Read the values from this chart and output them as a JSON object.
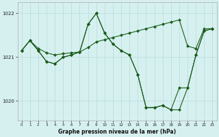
{
  "bg_color": "#d6f0f0",
  "line_color": "#1a5c1a",
  "grid_color": "#b8dada",
  "title": "Graphe pression niveau de la mer (hPa)",
  "xlim": [
    -0.5,
    23.5
  ],
  "ylim": [
    1019.55,
    1022.25
  ],
  "yticks": [
    1020,
    1021,
    1022
  ],
  "xticks": [
    0,
    1,
    2,
    3,
    4,
    5,
    6,
    7,
    8,
    9,
    10,
    11,
    12,
    13,
    14,
    15,
    16,
    17,
    18,
    19,
    20,
    21,
    22,
    23
  ],
  "line1_x": [
    0,
    1,
    2,
    3,
    4,
    5,
    6,
    7,
    8,
    9,
    10,
    11,
    12,
    13,
    14,
    15,
    16,
    17,
    18,
    19,
    20,
    21,
    22,
    23
  ],
  "line1_y": [
    1021.15,
    1021.38,
    1021.2,
    1021.1,
    1021.05,
    1021.08,
    1021.1,
    1021.12,
    1021.22,
    1021.35,
    1021.4,
    1021.45,
    1021.5,
    1021.55,
    1021.6,
    1021.65,
    1021.7,
    1021.75,
    1021.8,
    1021.85,
    1021.25,
    1021.2,
    1021.65,
    1021.65
  ],
  "line2_x": [
    0,
    1,
    2,
    3,
    4,
    5,
    6,
    7,
    8,
    9,
    10,
    11,
    12,
    13,
    14,
    15,
    16,
    17,
    18,
    19,
    20,
    21,
    22,
    23
  ],
  "line2_y": [
    1021.15,
    1021.38,
    1021.15,
    1020.9,
    1020.85,
    1021.0,
    1021.05,
    1021.12,
    1021.75,
    1022.0,
    1021.55,
    1021.3,
    1021.15,
    1021.05,
    1020.6,
    1019.85,
    1019.85,
    1019.9,
    1019.8,
    1019.8,
    1020.3,
    1021.05,
    1021.6,
    1021.65
  ],
  "line3_x": [
    0,
    1,
    2,
    3,
    4,
    5,
    6,
    7,
    8,
    9,
    10,
    11,
    12,
    13,
    14,
    15,
    16,
    17,
    18,
    19,
    20,
    21,
    22,
    23
  ],
  "line3_y": [
    1021.15,
    1021.38,
    1021.15,
    1020.9,
    1020.85,
    1021.0,
    1021.05,
    1021.12,
    1021.75,
    1022.0,
    1021.55,
    1021.3,
    1021.15,
    1021.05,
    1020.6,
    1019.85,
    1019.85,
    1019.9,
    1019.8,
    1020.3,
    1020.3,
    1021.05,
    1021.6,
    1021.65
  ]
}
